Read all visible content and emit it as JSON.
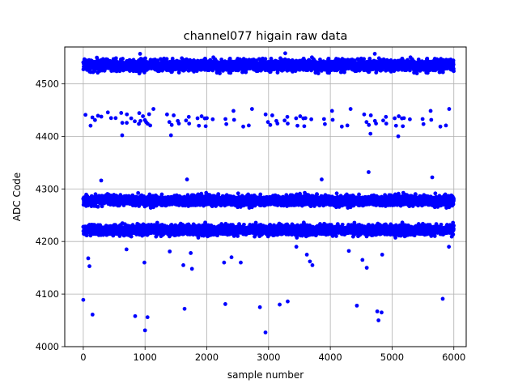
{
  "chart_data": {
    "type": "scatter",
    "title": "channel077 higain raw data",
    "xlabel": "sample number",
    "ylabel": "ADC Code",
    "xlim": [
      -300,
      6200
    ],
    "ylim": [
      4000,
      4570
    ],
    "x_ticks": [
      0,
      1000,
      2000,
      3000,
      4000,
      5000,
      6000
    ],
    "y_ticks": [
      4000,
      4100,
      4200,
      4300,
      4400,
      4500
    ],
    "grid": true,
    "marker_color": "#0000ff",
    "sample_count": 6000,
    "bands": [
      {
        "center": 4535,
        "spread": 8,
        "density": 1.0
      },
      {
        "center": 4435,
        "spread": 10,
        "density": 0.035
      },
      {
        "center": 4278,
        "spread": 7,
        "density": 1.0
      },
      {
        "center": 4222,
        "spread": 7,
        "density": 1.0
      }
    ],
    "outliers": [
      {
        "x": 0,
        "y": 4089
      },
      {
        "x": 80,
        "y": 4168
      },
      {
        "x": 100,
        "y": 4153
      },
      {
        "x": 150,
        "y": 4061
      },
      {
        "x": 840,
        "y": 4058
      },
      {
        "x": 990,
        "y": 4160
      },
      {
        "x": 1000,
        "y": 4031
      },
      {
        "x": 1040,
        "y": 4056
      },
      {
        "x": 1620,
        "y": 4155
      },
      {
        "x": 1640,
        "y": 4072
      },
      {
        "x": 1740,
        "y": 4178
      },
      {
        "x": 1760,
        "y": 4148
      },
      {
        "x": 2280,
        "y": 4160
      },
      {
        "x": 2300,
        "y": 4081
      },
      {
        "x": 2400,
        "y": 4170
      },
      {
        "x": 2550,
        "y": 4160
      },
      {
        "x": 2860,
        "y": 4075
      },
      {
        "x": 2950,
        "y": 4027
      },
      {
        "x": 3180,
        "y": 4080
      },
      {
        "x": 3310,
        "y": 4086
      },
      {
        "x": 3620,
        "y": 4175
      },
      {
        "x": 3670,
        "y": 4162
      },
      {
        "x": 3710,
        "y": 4155
      },
      {
        "x": 4430,
        "y": 4078
      },
      {
        "x": 4520,
        "y": 4165
      },
      {
        "x": 4590,
        "y": 4150
      },
      {
        "x": 4760,
        "y": 4067
      },
      {
        "x": 4780,
        "y": 4050
      },
      {
        "x": 4830,
        "y": 4065
      },
      {
        "x": 4840,
        "y": 4175
      },
      {
        "x": 5820,
        "y": 4091
      },
      {
        "x": 5920,
        "y": 4190
      },
      {
        "x": 700,
        "y": 4185
      },
      {
        "x": 1400,
        "y": 4181
      },
      {
        "x": 3450,
        "y": 4190
      },
      {
        "x": 4300,
        "y": 4182
      },
      {
        "x": 4620,
        "y": 4332
      },
      {
        "x": 5650,
        "y": 4322
      },
      {
        "x": 3860,
        "y": 4318
      },
      {
        "x": 1680,
        "y": 4318
      },
      {
        "x": 290,
        "y": 4316
      },
      {
        "x": 4650,
        "y": 4405
      },
      {
        "x": 1420,
        "y": 4402
      },
      {
        "x": 5100,
        "y": 4400
      },
      {
        "x": 630,
        "y": 4402
      },
      {
        "x": 920,
        "y": 4557
      },
      {
        "x": 3270,
        "y": 4558
      },
      {
        "x": 4720,
        "y": 4557
      }
    ]
  }
}
